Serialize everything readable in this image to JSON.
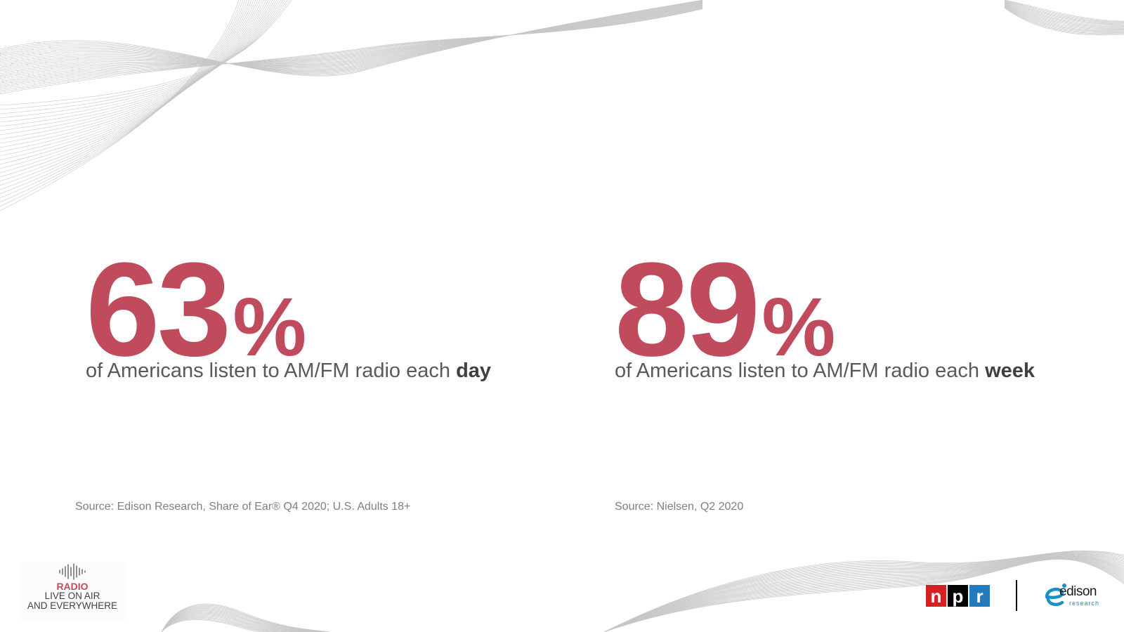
{
  "stats": [
    {
      "number": "63",
      "percent": "%",
      "caption_prefix": "of Americans listen to AM/FM radio each ",
      "caption_emphasis": "day",
      "source": "Source: Edison Research, Share of Ear® Q4 2020; U.S. Adults 18+"
    },
    {
      "number": "89",
      "percent": "%",
      "caption_prefix": "of Americans listen to AM/FM radio each ",
      "caption_emphasis": "week",
      "source": "Source: Nielsen, Q2 2020"
    }
  ],
  "radio_logo": {
    "icon": "soundwave-icon",
    "line1": "RADIO",
    "line2": "LIVE ON AIR",
    "line3": "AND EVERYWHERE"
  },
  "npr_logo": {
    "letters": [
      "n",
      "p",
      "r"
    ],
    "colors": [
      "#d62021",
      "#000000",
      "#237bbd"
    ]
  },
  "edison_logo": {
    "icon": "edison-swirl-icon",
    "word": "edison",
    "sub": "research"
  },
  "colors": {
    "accent": "#c04b5c",
    "caption_text": "#595959",
    "source_text": "#7f7f7f"
  }
}
